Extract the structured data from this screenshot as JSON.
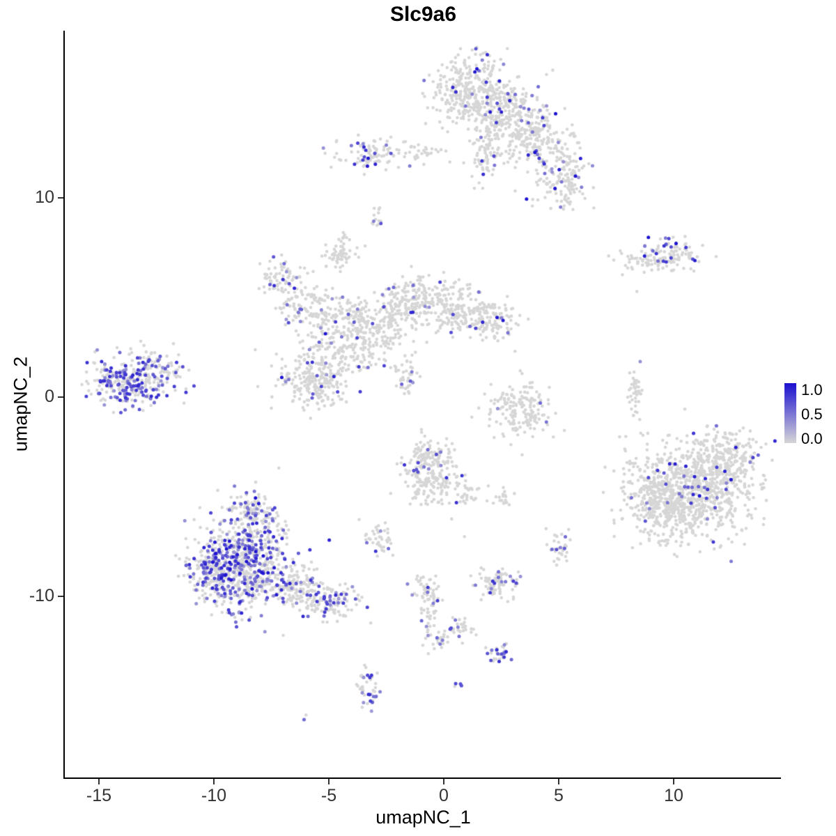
{
  "title": "Slc9a6",
  "seed": 42,
  "axes": {
    "x": {
      "label": "umapNC_1",
      "ticks": [
        "-15",
        "-10",
        "-5",
        "0",
        "5",
        "10"
      ],
      "tick_values": [
        -15,
        -10,
        -5,
        0,
        5,
        10
      ]
    },
    "y": {
      "label": "umapNC_2",
      "ticks": [
        "10",
        "0",
        "-10"
      ],
      "tick_values": [
        10,
        0,
        -10
      ]
    }
  },
  "legend": {
    "labels": [
      "1.0",
      "0.5",
      "0.0"
    ],
    "values": [
      1.0,
      0.5,
      0.0
    ],
    "low_color": "#d6d6d6",
    "high_color": "#1b10d0"
  },
  "chart_data": {
    "type": "scatter",
    "title": "Slc9a6",
    "xlabel": "umapNC_1",
    "ylabel": "umapNC_2",
    "xlim": [
      -16.4,
      14.6
    ],
    "ylim": [
      -19.1,
      18.4
    ],
    "point_radius_px": 2.3,
    "color_scale": {
      "low": "#d6d6d6",
      "high": "#1b10d0",
      "domain": [
        0,
        1
      ]
    },
    "clusters": [
      {
        "name": "top-main-left",
        "cx": 1.1,
        "cy": 15.4,
        "sx": 0.85,
        "sy": 0.95,
        "n": 320,
        "expr_frac": 0.05,
        "expr_lo": 0.3,
        "expr_hi": 1.0
      },
      {
        "name": "top-main-right",
        "cx": 2.7,
        "cy": 14.4,
        "sx": 0.85,
        "sy": 0.85,
        "n": 240,
        "expr_frac": 0.06,
        "expr_lo": 0.3,
        "expr_hi": 1.0
      },
      {
        "name": "top-neck",
        "cx": 1.8,
        "cy": 12.5,
        "sx": 0.35,
        "sy": 0.85,
        "n": 80,
        "expr_frac": 0.05,
        "expr_lo": 0.3,
        "expr_hi": 0.9
      },
      {
        "name": "top-branch-right",
        "cx": 4.0,
        "cy": 12.9,
        "sx": 0.85,
        "sy": 0.65,
        "n": 170,
        "expr_frac": 0.09,
        "expr_lo": 0.3,
        "expr_hi": 1.0
      },
      {
        "name": "top-branch-low",
        "cx": 5.1,
        "cy": 10.9,
        "sx": 0.65,
        "sy": 0.85,
        "n": 150,
        "expr_frac": 0.1,
        "expr_lo": 0.3,
        "expr_hi": 1.0
      },
      {
        "name": "topleft-blob",
        "cx": -3.1,
        "cy": 12.2,
        "sx": 0.75,
        "sy": 0.4,
        "n": 90,
        "expr_frac": 0.12,
        "expr_lo": 0.3,
        "expr_hi": 1.0
      },
      {
        "name": "topleft-trail",
        "cx": -0.9,
        "cy": 12.2,
        "sx": 0.6,
        "sy": 0.3,
        "n": 30,
        "expr_frac": 0.05,
        "expr_lo": 0.3,
        "expr_hi": 0.8
      },
      {
        "name": "tiny-dash",
        "cx": -2.9,
        "cy": 8.9,
        "sx": 0.12,
        "sy": 0.35,
        "n": 14,
        "expr_frac": 0.15,
        "expr_lo": 0.3,
        "expr_hi": 0.8
      },
      {
        "name": "right-upper-a",
        "cx": 8.6,
        "cy": 6.8,
        "sx": 0.55,
        "sy": 0.3,
        "n": 55,
        "expr_frac": 0.1,
        "expr_lo": 0.3,
        "expr_hi": 1.0
      },
      {
        "name": "right-upper-b",
        "cx": 10.1,
        "cy": 7.2,
        "sx": 0.65,
        "sy": 0.35,
        "n": 90,
        "expr_frac": 0.15,
        "expr_lo": 0.4,
        "expr_hi": 1.0
      },
      {
        "name": "mid-left-lobe1",
        "cx": -7.1,
        "cy": 6.0,
        "sx": 0.45,
        "sy": 0.5,
        "n": 70,
        "expr_frac": 0.15,
        "expr_lo": 0.3,
        "expr_hi": 0.9
      },
      {
        "name": "mid-left-lobe2",
        "cx": -6.0,
        "cy": 4.6,
        "sx": 0.6,
        "sy": 0.6,
        "n": 110,
        "expr_frac": 0.08,
        "expr_lo": 0.3,
        "expr_hi": 0.9
      },
      {
        "name": "mid-left-lobe3",
        "cx": -4.8,
        "cy": 3.2,
        "sx": 0.7,
        "sy": 0.8,
        "n": 130,
        "expr_frac": 0.05,
        "expr_lo": 0.3,
        "expr_hi": 0.8
      },
      {
        "name": "mid-low-blob",
        "cx": -5.6,
        "cy": 0.9,
        "sx": 0.8,
        "sy": 0.75,
        "n": 260,
        "expr_frac": 0.06,
        "expr_lo": 0.3,
        "expr_hi": 1.0
      },
      {
        "name": "mid-center1",
        "cx": -3.9,
        "cy": 4.2,
        "sx": 0.5,
        "sy": 0.4,
        "n": 60,
        "expr_frac": 0.05,
        "expr_lo": 0.3,
        "expr_hi": 0.8
      },
      {
        "name": "mid-center2",
        "cx": -2.7,
        "cy": 3.3,
        "sx": 0.6,
        "sy": 0.7,
        "n": 120,
        "expr_frac": 0.05,
        "expr_lo": 0.3,
        "expr_hi": 0.8
      },
      {
        "name": "mid-top-blob",
        "cx": -1.2,
        "cy": 4.8,
        "sx": 0.8,
        "sy": 0.65,
        "n": 200,
        "expr_frac": 0.04,
        "expr_lo": 0.3,
        "expr_hi": 0.9
      },
      {
        "name": "mid-right1",
        "cx": 0.6,
        "cy": 4.3,
        "sx": 0.8,
        "sy": 0.6,
        "n": 150,
        "expr_frac": 0.04,
        "expr_lo": 0.3,
        "expr_hi": 0.9
      },
      {
        "name": "mid-right2",
        "cx": 2.1,
        "cy": 3.9,
        "sx": 0.6,
        "sy": 0.5,
        "n": 110,
        "expr_frac": 0.09,
        "expr_lo": 0.3,
        "expr_hi": 1.0
      },
      {
        "name": "mid-streak",
        "cx": -1.7,
        "cy": 1.2,
        "sx": 0.3,
        "sy": 0.55,
        "n": 45,
        "expr_frac": 0.1,
        "expr_lo": 0.3,
        "expr_hi": 0.9
      },
      {
        "name": "mid-connector",
        "cx": -3.6,
        "cy": 2.2,
        "sx": 0.4,
        "sy": 0.5,
        "n": 35,
        "expr_frac": 0.03,
        "expr_lo": 0.3,
        "expr_hi": 0.7
      },
      {
        "name": "gray-blob-upper",
        "cx": -4.5,
        "cy": 7.3,
        "sx": 0.35,
        "sy": 0.5,
        "n": 65,
        "expr_frac": 0.02,
        "expr_lo": 0.3,
        "expr_hi": 0.6
      },
      {
        "name": "farleft-main",
        "cx": -13.7,
        "cy": 0.9,
        "sx": 0.85,
        "sy": 0.7,
        "n": 280,
        "expr_frac": 0.45,
        "expr_lo": 0.3,
        "expr_hi": 0.9
      },
      {
        "name": "farleft-edge",
        "cx": -12.2,
        "cy": 1.5,
        "sx": 0.55,
        "sy": 0.5,
        "n": 60,
        "expr_frac": 0.12,
        "expr_lo": 0.3,
        "expr_hi": 0.8
      },
      {
        "name": "right-sliver",
        "cx": 8.35,
        "cy": 0.1,
        "sx": 0.12,
        "sy": 0.7,
        "n": 40,
        "expr_frac": 0.02,
        "expr_lo": 0.3,
        "expr_hi": 0.6
      },
      {
        "name": "center-ring",
        "cx": 3.3,
        "cy": -0.6,
        "sx": 0.7,
        "sy": 0.75,
        "n": 170,
        "expr_frac": 0.02,
        "expr_lo": 0.3,
        "expr_hi": 0.7
      },
      {
        "name": "bigright-main",
        "cx": 10.7,
        "cy": -4.8,
        "sx": 1.3,
        "sy": 1.2,
        "n": 850,
        "expr_frac": 0.03,
        "expr_lo": 0.4,
        "expr_hi": 1.0
      },
      {
        "name": "bigright-topright",
        "cx": 12.2,
        "cy": -3.1,
        "sx": 0.8,
        "sy": 0.7,
        "n": 240,
        "expr_frac": 0.05,
        "expr_lo": 0.4,
        "expr_hi": 1.0
      },
      {
        "name": "bigright-leftedge",
        "cx": 9.2,
        "cy": -5.0,
        "sx": 0.6,
        "sy": 1.0,
        "n": 150,
        "expr_frac": 0.03,
        "expr_lo": 0.3,
        "expr_hi": 1.0
      },
      {
        "name": "center-low-a",
        "cx": -0.7,
        "cy": -3.2,
        "sx": 0.55,
        "sy": 0.5,
        "n": 140,
        "expr_frac": 0.06,
        "expr_lo": 0.3,
        "expr_hi": 0.9
      },
      {
        "name": "center-low-b",
        "cx": -0.4,
        "cy": -4.4,
        "sx": 0.7,
        "sy": 0.5,
        "n": 120,
        "expr_frac": 0.04,
        "expr_lo": 0.3,
        "expr_hi": 0.9
      },
      {
        "name": "center-low-c",
        "cx": 1.1,
        "cy": -4.9,
        "sx": 0.3,
        "sy": 0.3,
        "n": 20,
        "expr_frac": 0.05,
        "expr_lo": 0.3,
        "expr_hi": 0.7
      },
      {
        "name": "small-right-of-center",
        "cx": 2.6,
        "cy": -5.1,
        "sx": 0.25,
        "sy": 0.3,
        "n": 18,
        "expr_frac": 0.0,
        "expr_lo": 0.3,
        "expr_hi": 0.6
      },
      {
        "name": "bottomleft-main",
        "cx": -8.7,
        "cy": -8.3,
        "sx": 1.05,
        "sy": 1.2,
        "n": 680,
        "expr_frac": 0.33,
        "expr_lo": 0.3,
        "expr_hi": 1.0
      },
      {
        "name": "bottomleft-top",
        "cx": -8.3,
        "cy": -5.9,
        "sx": 0.5,
        "sy": 0.6,
        "n": 120,
        "expr_frac": 0.3,
        "expr_lo": 0.3,
        "expr_hi": 0.9
      },
      {
        "name": "bottomleft-left",
        "cx": -10.1,
        "cy": -8.9,
        "sx": 0.5,
        "sy": 0.65,
        "n": 150,
        "expr_frac": 0.3,
        "expr_lo": 0.3,
        "expr_hi": 0.9
      },
      {
        "name": "bottomleft-tail1",
        "cx": -6.5,
        "cy": -9.6,
        "sx": 0.7,
        "sy": 0.5,
        "n": 150,
        "expr_frac": 0.15,
        "expr_lo": 0.3,
        "expr_hi": 1.0
      },
      {
        "name": "bottomleft-tail2",
        "cx": -4.9,
        "cy": -10.3,
        "sx": 0.6,
        "sy": 0.4,
        "n": 120,
        "expr_frac": 0.2,
        "expr_lo": 0.3,
        "expr_hi": 0.9
      },
      {
        "name": "small-blob-left",
        "cx": -2.8,
        "cy": -7.1,
        "sx": 0.3,
        "sy": 0.4,
        "n": 40,
        "expr_frac": 0.1,
        "expr_lo": 0.3,
        "expr_hi": 0.9
      },
      {
        "name": "small-blob-right",
        "cx": 5.0,
        "cy": -7.6,
        "sx": 0.25,
        "sy": 0.45,
        "n": 35,
        "expr_frac": 0.12,
        "expr_lo": 0.3,
        "expr_hi": 0.9
      },
      {
        "name": "bottom-center-cluster",
        "cx": 2.3,
        "cy": -9.3,
        "sx": 0.45,
        "sy": 0.4,
        "n": 90,
        "expr_frac": 0.18,
        "expr_lo": 0.3,
        "expr_hi": 0.9
      },
      {
        "name": "strand-a",
        "cx": -0.8,
        "cy": -9.6,
        "sx": 0.3,
        "sy": 0.4,
        "n": 45,
        "expr_frac": 0.1,
        "expr_lo": 0.3,
        "expr_hi": 0.8
      },
      {
        "name": "strand-b",
        "cx": -0.6,
        "cy": -11.0,
        "sx": 0.2,
        "sy": 0.5,
        "n": 30,
        "expr_frac": 0.15,
        "expr_lo": 0.3,
        "expr_hi": 0.9
      },
      {
        "name": "strand-c",
        "cx": -0.3,
        "cy": -12.1,
        "sx": 0.3,
        "sy": 0.3,
        "n": 25,
        "expr_frac": 0.2,
        "expr_lo": 0.3,
        "expr_hi": 0.9
      },
      {
        "name": "diag-streak",
        "cx": 0.8,
        "cy": -11.6,
        "sx": 0.35,
        "sy": 0.3,
        "n": 30,
        "expr_frac": 0.06,
        "expr_lo": 0.3,
        "expr_hi": 0.7
      },
      {
        "name": "small-bottom",
        "cx": 2.4,
        "cy": -12.9,
        "sx": 0.3,
        "sy": 0.25,
        "n": 30,
        "expr_frac": 0.3,
        "expr_lo": 0.3,
        "expr_hi": 0.9
      },
      {
        "name": "dot-pair",
        "cx": 0.6,
        "cy": -14.4,
        "sx": 0.08,
        "sy": 0.12,
        "n": 4,
        "expr_frac": 0.8,
        "expr_lo": 0.5,
        "expr_hi": 0.9
      },
      {
        "name": "bottomleft-small",
        "cx": -3.3,
        "cy": -14.7,
        "sx": 0.25,
        "sy": 0.55,
        "n": 45,
        "expr_frac": 0.25,
        "expr_lo": 0.3,
        "expr_hi": 0.9
      },
      {
        "name": "tiny-speck",
        "cx": -6.1,
        "cy": -16.2,
        "sx": 0.1,
        "sy": 0.1,
        "n": 3,
        "expr_frac": 0.3,
        "expr_lo": 0.3,
        "expr_hi": 0.7
      }
    ],
    "outliers": [
      [
        8.4,
        5.3,
        0
      ],
      [
        3.1,
        2.3,
        0
      ],
      [
        7.9,
        -2.7,
        0
      ],
      [
        4.2,
        -0.3,
        0.55
      ],
      [
        0.9,
        -7.0,
        0
      ],
      [
        -11.3,
        -0.3,
        0
      ]
    ]
  }
}
